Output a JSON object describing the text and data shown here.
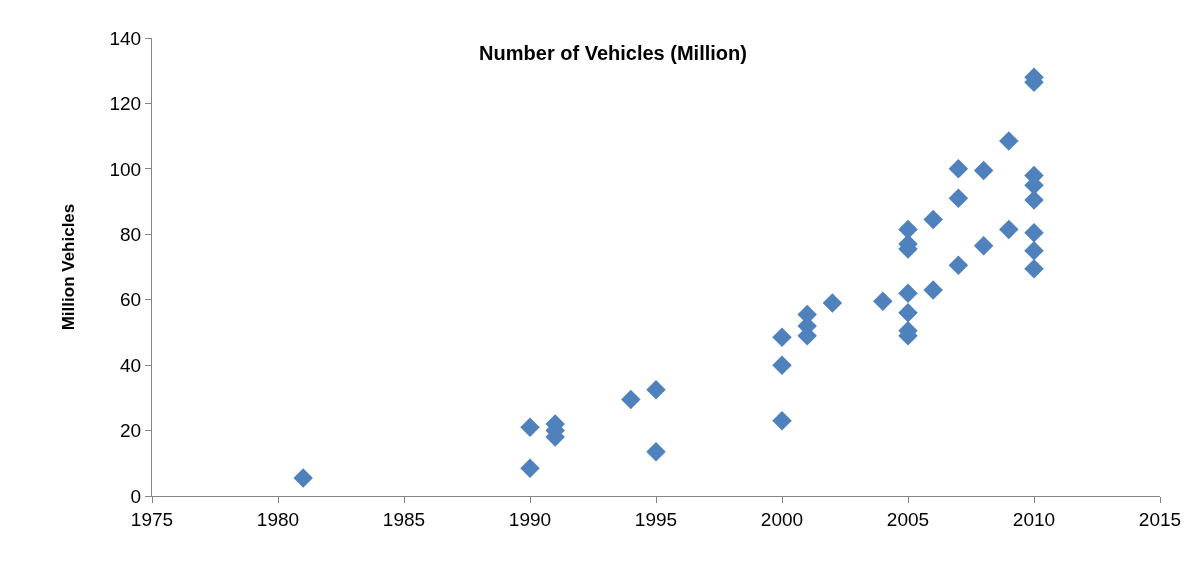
{
  "chart_data": {
    "type": "scatter",
    "title": "Number of Vehicles (Million)",
    "ylabel": "Million Vehicles",
    "x": [
      1981,
      1990,
      1990,
      1991,
      1991,
      1991,
      1994,
      1995,
      1995,
      2000,
      2000,
      2000,
      2001,
      2001,
      2001,
      2002,
      2004,
      2005,
      2005,
      2005,
      2005,
      2005,
      2005,
      2005,
      2006,
      2006,
      2007,
      2007,
      2007,
      2008,
      2008,
      2009,
      2009,
      2010,
      2010,
      2010,
      2010,
      2010,
      2010,
      2010,
      2010
    ],
    "series": [
      {
        "color": "#4f81bd",
        "values": [
          5.5,
          21,
          8.5,
          22,
          20,
          18,
          29.5,
          32.5,
          13.5,
          48.5,
          40,
          23,
          55.5,
          52,
          49,
          59,
          59.5,
          81.5,
          77,
          75.5,
          62,
          56,
          50.5,
          49,
          84.5,
          63,
          100,
          91,
          70.5,
          99.5,
          76.5,
          108.5,
          81.5,
          128,
          126.5,
          98,
          95,
          90.5,
          80.5,
          75,
          69.5
        ]
      }
    ],
    "xlim": [
      1975,
      2015
    ],
    "xticks": [
      1975,
      1980,
      1985,
      1990,
      1995,
      2000,
      2005,
      2010,
      2015
    ],
    "ylim": [
      0,
      140
    ],
    "yticks": [
      0,
      20,
      40,
      60,
      80,
      100,
      120,
      140
    ],
    "marker": "diamond",
    "grid": false
  }
}
